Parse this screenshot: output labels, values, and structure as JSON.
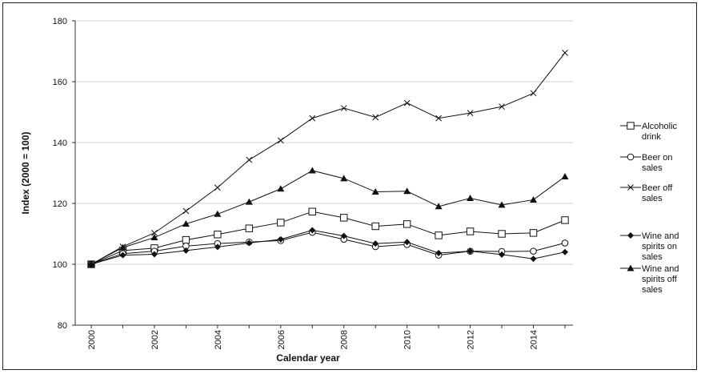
{
  "chart_data": {
    "type": "line",
    "title": "",
    "xlabel": "Calendar year",
    "ylabel": "Index (2000 = 100)",
    "xlim": [
      2000,
      2015
    ],
    "ylim": [
      80,
      180
    ],
    "yticks": [
      "80",
      "100",
      "120",
      "140",
      "160",
      "180"
    ],
    "xticks": [
      "2000",
      "2002",
      "2004",
      "2006",
      "2008",
      "2010",
      "2012",
      "2014"
    ],
    "grid": "horizontal",
    "legend_position": "right",
    "x": [
      2000,
      2001,
      2002,
      2003,
      2004,
      2005,
      2006,
      2007,
      2008,
      2009,
      2010,
      2011,
      2012,
      2013,
      2014,
      2015
    ],
    "series": [
      {
        "name": "Alcoholic drink",
        "legend_lines": [
          "Alcoholic",
          "drink"
        ],
        "marker": "open-square",
        "values": [
          100,
          104.5,
          105.3,
          108,
          109.8,
          111.8,
          113.7,
          117.3,
          115.3,
          112.5,
          113.2,
          109.5,
          110.8,
          110,
          110.3,
          114.5
        ]
      },
      {
        "name": "Beer on sales",
        "legend_lines": [
          "Beer on",
          "sales"
        ],
        "marker": "open-circle",
        "values": [
          100,
          103.5,
          104.3,
          106,
          106.8,
          107.3,
          107.8,
          110.5,
          108.2,
          105.8,
          106.5,
          103,
          104.3,
          104.2,
          104.3,
          107
        ]
      },
      {
        "name": "Beer off sales",
        "legend_lines": [
          "Beer off",
          "sales"
        ],
        "marker": "x",
        "values": [
          100,
          105.8,
          110.3,
          117.5,
          125.2,
          134.3,
          140.7,
          148,
          151.3,
          148.3,
          153,
          148,
          149.7,
          151.8,
          156.2,
          169.5
        ]
      },
      {
        "name": "Wine and spirits on sales",
        "legend_lines": [
          "Wine and",
          "spirits on",
          "sales"
        ],
        "marker": "filled-diamond",
        "values": [
          100,
          103,
          103.3,
          104.5,
          105.7,
          107,
          108.2,
          111.2,
          109.3,
          106.8,
          107.3,
          103.7,
          104.3,
          103.2,
          101.8,
          104
        ]
      },
      {
        "name": "Wine and spirits off sales",
        "legend_lines": [
          "Wine and",
          "spirits off",
          "sales"
        ],
        "marker": "filled-triangle",
        "values": [
          100,
          105.5,
          108.8,
          113.3,
          116.5,
          120.5,
          124.8,
          130.8,
          128.2,
          123.8,
          124,
          119,
          121.7,
          119.5,
          121.2,
          128.8
        ]
      }
    ]
  }
}
